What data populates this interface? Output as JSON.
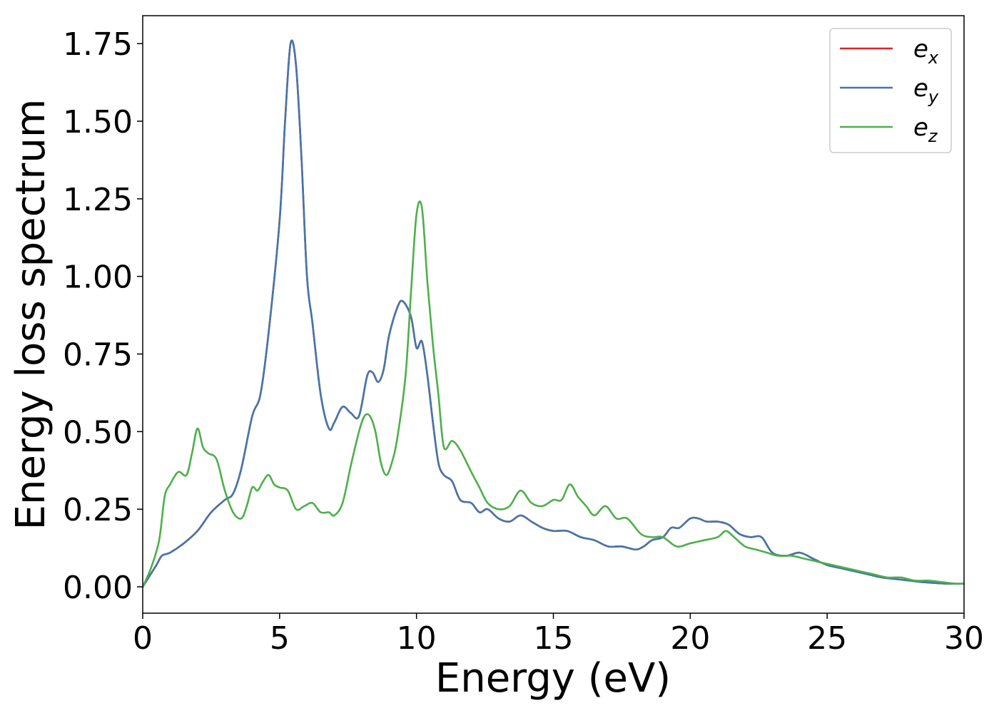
{
  "chart_data": {
    "type": "line",
    "xlabel": "Energy (eV)",
    "ylabel": "Energy loss spectrum",
    "xlim": [
      0,
      30
    ],
    "ylim": [
      -0.085,
      1.84
    ],
    "xticks": [
      0,
      5,
      10,
      15,
      20,
      25,
      30
    ],
    "xtick_labels": [
      "0",
      "5",
      "10",
      "15",
      "20",
      "25",
      "30"
    ],
    "yticks": [
      0,
      0.25,
      0.5,
      0.75,
      1.0,
      1.25,
      1.5,
      1.75
    ],
    "ytick_labels": [
      "0.00",
      "0.25",
      "0.50",
      "0.75",
      "1.00",
      "1.25",
      "1.50",
      "1.75"
    ],
    "grid": false,
    "legend_position": "top-right",
    "series": [
      {
        "name": "e_x",
        "base": "e",
        "sub": "x",
        "color": "#d62728",
        "x": [
          0,
          0.5,
          0.7,
          1,
          1.5,
          2,
          2.5,
          3,
          3.3,
          3.6,
          4,
          4.3,
          4.6,
          5,
          5.2,
          5.4,
          5.6,
          5.8,
          6,
          6.2,
          6.5,
          6.8,
          7,
          7.3,
          7.6,
          7.9,
          8.2,
          8.4,
          8.6,
          8.8,
          9,
          9.3,
          9.5,
          9.8,
          10,
          10.2,
          10.4,
          10.6,
          10.8,
          11,
          11.3,
          11.6,
          12,
          12.3,
          12.6,
          13,
          13.4,
          13.8,
          14.2,
          14.6,
          15,
          15.5,
          16,
          16.5,
          17,
          17.5,
          18,
          18.3,
          18.6,
          19,
          19.3,
          19.6,
          20,
          20.3,
          20.6,
          21,
          21.4,
          21.8,
          22.2,
          22.6,
          23,
          23.5,
          24,
          24.5,
          25,
          25.5,
          26,
          26.5,
          27,
          27.5,
          28,
          28.5,
          29,
          29.5,
          30
        ],
        "y": [
          0,
          0.07,
          0.1,
          0.11,
          0.14,
          0.18,
          0.24,
          0.28,
          0.3,
          0.38,
          0.55,
          0.62,
          0.82,
          1.18,
          1.5,
          1.75,
          1.68,
          1.38,
          1.0,
          0.85,
          0.62,
          0.51,
          0.53,
          0.58,
          0.56,
          0.55,
          0.68,
          0.69,
          0.66,
          0.7,
          0.81,
          0.9,
          0.92,
          0.87,
          0.77,
          0.79,
          0.68,
          0.53,
          0.4,
          0.36,
          0.34,
          0.28,
          0.27,
          0.24,
          0.25,
          0.22,
          0.21,
          0.23,
          0.21,
          0.19,
          0.18,
          0.18,
          0.16,
          0.15,
          0.13,
          0.13,
          0.12,
          0.13,
          0.15,
          0.16,
          0.19,
          0.19,
          0.22,
          0.22,
          0.21,
          0.21,
          0.2,
          0.17,
          0.16,
          0.16,
          0.11,
          0.1,
          0.11,
          0.09,
          0.07,
          0.06,
          0.05,
          0.04,
          0.03,
          0.025,
          0.02,
          0.015,
          0.012,
          0.01,
          0.01
        ]
      },
      {
        "name": "e_y",
        "base": "e",
        "sub": "y",
        "color": "#4477aa",
        "x": [
          0,
          0.5,
          0.7,
          1,
          1.5,
          2,
          2.5,
          3,
          3.3,
          3.6,
          4,
          4.3,
          4.6,
          5,
          5.2,
          5.4,
          5.6,
          5.8,
          6,
          6.2,
          6.5,
          6.8,
          7,
          7.3,
          7.6,
          7.9,
          8.2,
          8.4,
          8.6,
          8.8,
          9,
          9.3,
          9.5,
          9.8,
          10,
          10.2,
          10.4,
          10.6,
          10.8,
          11,
          11.3,
          11.6,
          12,
          12.3,
          12.6,
          13,
          13.4,
          13.8,
          14.2,
          14.6,
          15,
          15.5,
          16,
          16.5,
          17,
          17.5,
          18,
          18.3,
          18.6,
          19,
          19.3,
          19.6,
          20,
          20.3,
          20.6,
          21,
          21.4,
          21.8,
          22.2,
          22.6,
          23,
          23.5,
          24,
          24.5,
          25,
          25.5,
          26,
          26.5,
          27,
          27.5,
          28,
          28.5,
          29,
          29.5,
          30
        ],
        "y": [
          0,
          0.07,
          0.1,
          0.11,
          0.14,
          0.18,
          0.24,
          0.28,
          0.3,
          0.38,
          0.55,
          0.62,
          0.82,
          1.18,
          1.5,
          1.75,
          1.68,
          1.38,
          1.0,
          0.85,
          0.62,
          0.51,
          0.53,
          0.58,
          0.56,
          0.55,
          0.68,
          0.69,
          0.66,
          0.7,
          0.81,
          0.9,
          0.92,
          0.87,
          0.77,
          0.79,
          0.68,
          0.53,
          0.4,
          0.36,
          0.34,
          0.28,
          0.27,
          0.24,
          0.25,
          0.22,
          0.21,
          0.23,
          0.21,
          0.19,
          0.18,
          0.18,
          0.16,
          0.15,
          0.13,
          0.13,
          0.12,
          0.13,
          0.15,
          0.16,
          0.19,
          0.19,
          0.22,
          0.22,
          0.21,
          0.21,
          0.2,
          0.17,
          0.16,
          0.16,
          0.11,
          0.1,
          0.11,
          0.09,
          0.07,
          0.06,
          0.05,
          0.04,
          0.03,
          0.025,
          0.02,
          0.015,
          0.012,
          0.01,
          0.01
        ]
      },
      {
        "name": "e_z",
        "base": "e",
        "sub": "z",
        "color": "#4daf4a",
        "x": [
          0,
          0.3,
          0.6,
          0.8,
          1,
          1.3,
          1.6,
          1.8,
          2,
          2.2,
          2.4,
          2.7,
          3,
          3.3,
          3.6,
          3.8,
          4,
          4.2,
          4.4,
          4.6,
          4.8,
          5,
          5.3,
          5.6,
          5.9,
          6.2,
          6.5,
          6.8,
          7,
          7.3,
          7.6,
          7.9,
          8.1,
          8.3,
          8.5,
          8.7,
          8.9,
          9.1,
          9.3,
          9.6,
          9.8,
          10,
          10.2,
          10.4,
          10.6,
          10.8,
          11,
          11.3,
          11.6,
          12,
          12.3,
          12.6,
          13,
          13.4,
          13.8,
          14.2,
          14.6,
          15,
          15.3,
          15.6,
          15.9,
          16.2,
          16.5,
          16.9,
          17.3,
          17.7,
          18.2,
          18.6,
          19,
          19.5,
          20,
          20.5,
          21,
          21.3,
          21.6,
          22,
          22.4,
          22.8,
          23.2,
          23.7,
          24.2,
          24.7,
          25.2,
          25.7,
          26.2,
          26.7,
          27.2,
          27.7,
          28.2,
          28.7,
          29.2,
          29.7,
          30
        ],
        "y": [
          0,
          0.06,
          0.15,
          0.29,
          0.33,
          0.37,
          0.36,
          0.43,
          0.51,
          0.45,
          0.43,
          0.41,
          0.31,
          0.24,
          0.22,
          0.26,
          0.32,
          0.31,
          0.34,
          0.36,
          0.33,
          0.32,
          0.31,
          0.25,
          0.26,
          0.27,
          0.24,
          0.24,
          0.23,
          0.27,
          0.39,
          0.5,
          0.55,
          0.55,
          0.5,
          0.4,
          0.36,
          0.4,
          0.48,
          0.68,
          0.95,
          1.2,
          1.22,
          0.98,
          0.78,
          0.62,
          0.45,
          0.47,
          0.44,
          0.37,
          0.32,
          0.27,
          0.25,
          0.26,
          0.31,
          0.27,
          0.26,
          0.28,
          0.28,
          0.33,
          0.29,
          0.26,
          0.23,
          0.26,
          0.22,
          0.22,
          0.17,
          0.16,
          0.16,
          0.13,
          0.14,
          0.15,
          0.16,
          0.18,
          0.16,
          0.13,
          0.12,
          0.11,
          0.1,
          0.1,
          0.09,
          0.08,
          0.07,
          0.06,
          0.05,
          0.04,
          0.03,
          0.03,
          0.02,
          0.02,
          0.015,
          0.01,
          0.01
        ]
      }
    ]
  }
}
